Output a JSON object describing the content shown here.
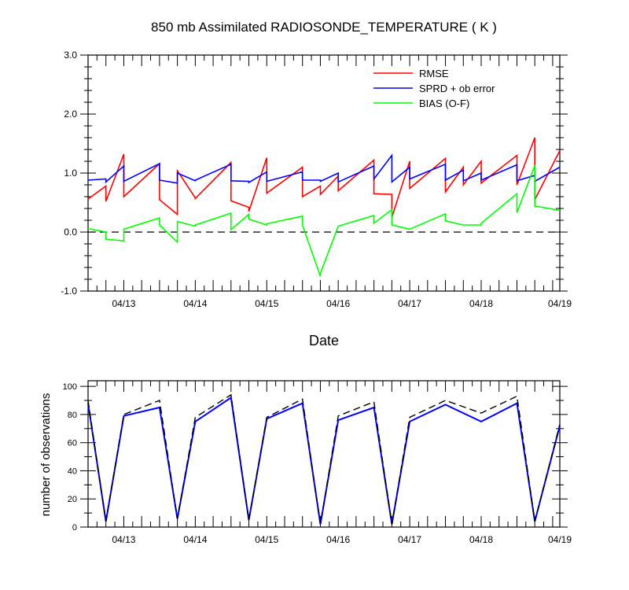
{
  "chart_data": [
    {
      "type": "line",
      "title": "850 mb Assimilated RADIOSONDE_TEMPERATURE ( K )",
      "xlabel": "Date",
      "ylabel": "",
      "xlim": [
        0,
        6.6
      ],
      "ylim": [
        -1.0,
        3.0
      ],
      "ytick_labels": [
        "-1.0",
        "0.0",
        "1.0",
        "2.0",
        "3.0"
      ],
      "ytick_values": [
        -1.0,
        0.0,
        1.0,
        2.0,
        3.0
      ],
      "xtick_labels": [
        "04/13",
        "04/14",
        "04/15",
        "04/16",
        "04/17",
        "04/18",
        "04/19"
      ],
      "xtick_values": [
        0.5,
        1.5,
        2.5,
        3.5,
        4.5,
        5.5,
        6.6
      ],
      "legend_position": "top-right",
      "reference_line": 0.0,
      "series": [
        {
          "name": "RMSE",
          "color": "#ff0000",
          "x": [
            0.0,
            0.25,
            0.25,
            0.5,
            0.5,
            1.0,
            1.0,
            1.25,
            1.25,
            1.5,
            1.5,
            2.0,
            2.0,
            2.25,
            2.25,
            2.5,
            2.5,
            3.0,
            3.0,
            3.25,
            3.25,
            3.5,
            3.5,
            4.0,
            4.0,
            4.25,
            4.25,
            4.5,
            4.5,
            5.0,
            5.0,
            5.25,
            5.25,
            5.5,
            5.5,
            6.0,
            6.0,
            6.25,
            6.25,
            6.6
          ],
          "values": [
            0.56,
            0.78,
            0.52,
            1.32,
            0.6,
            1.16,
            0.55,
            0.3,
            1.04,
            0.58,
            0.57,
            1.18,
            0.53,
            0.42,
            0.35,
            1.26,
            0.66,
            1.1,
            0.6,
            0.78,
            0.64,
            0.95,
            0.7,
            1.22,
            0.65,
            0.64,
            0.25,
            1.2,
            0.74,
            1.25,
            0.68,
            1.1,
            0.8,
            1.2,
            0.83,
            1.3,
            0.8,
            1.6,
            0.55,
            1.38
          ]
        },
        {
          "name": "SPRD + ob error",
          "color": "#0000ff",
          "x": [
            0.0,
            0.25,
            0.25,
            0.5,
            0.5,
            1.0,
            1.0,
            1.25,
            1.25,
            1.5,
            1.5,
            2.0,
            2.0,
            2.25,
            2.25,
            2.5,
            2.5,
            3.0,
            3.0,
            3.25,
            3.25,
            3.5,
            3.5,
            4.0,
            4.0,
            4.25,
            4.25,
            4.5,
            4.5,
            5.0,
            5.0,
            5.25,
            5.25,
            5.5,
            5.5,
            6.0,
            6.0,
            6.25,
            6.25,
            6.6
          ],
          "values": [
            0.88,
            0.9,
            0.85,
            1.12,
            0.86,
            1.16,
            0.88,
            0.83,
            1.0,
            0.87,
            0.88,
            1.15,
            0.87,
            0.86,
            0.84,
            1.02,
            0.86,
            1.02,
            0.88,
            0.88,
            0.86,
            1.0,
            0.85,
            1.12,
            0.9,
            1.3,
            0.85,
            1.1,
            0.9,
            1.15,
            0.88,
            1.05,
            0.87,
            1.0,
            0.88,
            1.14,
            0.87,
            0.96,
            0.86,
            1.1
          ]
        },
        {
          "name": "BIAS (O-F)",
          "color": "#00ff00",
          "x": [
            0.0,
            0.25,
            0.25,
            0.5,
            0.5,
            1.0,
            1.0,
            1.25,
            1.25,
            1.5,
            1.5,
            2.0,
            2.0,
            2.25,
            2.25,
            2.5,
            2.5,
            3.0,
            3.0,
            3.25,
            3.25,
            3.5,
            3.5,
            4.0,
            4.0,
            4.25,
            4.25,
            4.5,
            4.5,
            5.0,
            5.0,
            5.25,
            5.25,
            5.5,
            5.5,
            6.0,
            6.0,
            6.25,
            6.25,
            6.6
          ],
          "values": [
            0.06,
            0.0,
            -0.12,
            -0.15,
            0.05,
            0.24,
            0.12,
            -0.17,
            0.18,
            0.1,
            0.12,
            0.32,
            0.04,
            0.3,
            0.22,
            0.12,
            0.14,
            0.27,
            0.12,
            -0.75,
            -0.7,
            0.1,
            0.1,
            0.28,
            0.15,
            0.38,
            0.12,
            0.05,
            0.05,
            0.31,
            0.19,
            0.12,
            0.12,
            0.12,
            0.15,
            0.65,
            0.33,
            1.13,
            0.44,
            0.37
          ]
        }
      ]
    },
    {
      "type": "line",
      "title": "",
      "xlabel": "",
      "ylabel": "number of observations",
      "xlim": [
        0,
        6.6
      ],
      "ylim": [
        0,
        104
      ],
      "ytick_labels": [
        "0",
        "20",
        "40",
        "60",
        "80",
        "100"
      ],
      "ytick_values": [
        0,
        20,
        40,
        60,
        80,
        100
      ],
      "xtick_labels": [
        "04/13",
        "04/14",
        "04/15",
        "04/16",
        "04/17",
        "04/18",
        "04/19"
      ],
      "xtick_values": [
        0.5,
        1.5,
        2.5,
        3.5,
        4.5,
        5.5,
        6.6
      ],
      "series": [
        {
          "name": "",
          "color": "#0000ff",
          "style": "solid",
          "x": [
            0.0,
            0.25,
            0.5,
            1.0,
            1.25,
            1.5,
            2.0,
            2.25,
            2.5,
            3.0,
            3.25,
            3.5,
            4.0,
            4.25,
            4.5,
            5.0,
            5.5,
            6.0,
            6.25,
            6.6
          ],
          "values": [
            88,
            4,
            79,
            85,
            6,
            75,
            92,
            5,
            77,
            88,
            2,
            76,
            85,
            2,
            75,
            87,
            75,
            88,
            4,
            72
          ]
        },
        {
          "name": "",
          "color": "#000000",
          "style": "dashed",
          "x": [
            0.0,
            0.25,
            0.5,
            1.0,
            1.25,
            1.5,
            2.0,
            2.25,
            2.5,
            3.0,
            3.25,
            3.5,
            4.0,
            4.25,
            4.5,
            5.0,
            5.5,
            6.0,
            6.25,
            6.6
          ],
          "values": [
            90,
            4,
            80,
            90,
            6,
            78,
            94,
            5,
            78,
            91,
            2,
            79,
            89,
            2,
            78,
            90,
            81,
            93,
            4,
            73
          ]
        }
      ]
    }
  ]
}
